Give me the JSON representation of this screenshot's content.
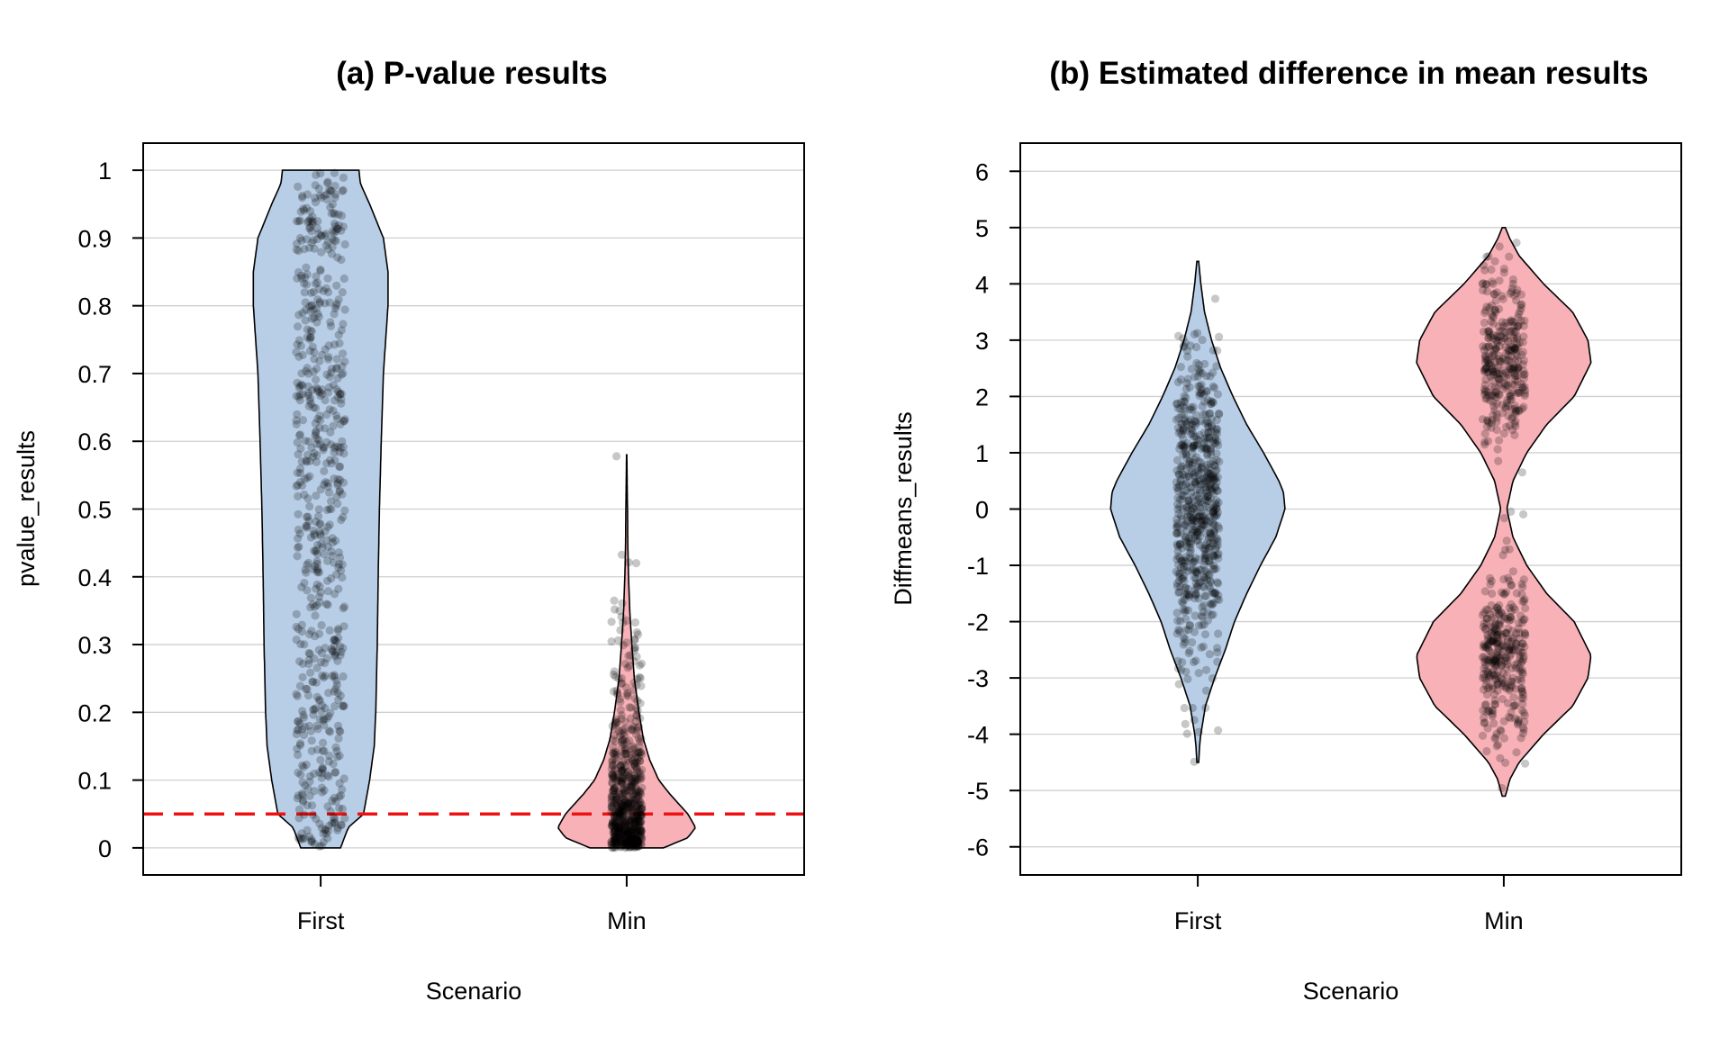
{
  "chart_data": [
    {
      "type": "violin",
      "title": "(a) P-value results",
      "xlabel": "Scenario",
      "ylabel": "pvalue_results",
      "categories": [
        "First",
        "Min"
      ],
      "yticks": [
        "0",
        "0.1",
        "0.2",
        "0.3",
        "0.4",
        "0.5",
        "0.6",
        "0.7",
        "0.8",
        "0.9",
        "1"
      ],
      "ylim": [
        -0.04,
        1.04
      ],
      "grid": true,
      "reference_line": {
        "y": 0.05,
        "style": "dashed",
        "color": "#ee1111"
      },
      "series": [
        {
          "category": "First",
          "fill": "#b8cde6",
          "range": [
            0,
            1
          ],
          "profile": [
            [
              0,
              0.065
            ],
            [
              0.03,
              0.09
            ],
            [
              0.05,
              0.14
            ],
            [
              0.1,
              0.16
            ],
            [
              0.15,
              0.175
            ],
            [
              0.2,
              0.18
            ],
            [
              0.3,
              0.185
            ],
            [
              0.4,
              0.188
            ],
            [
              0.5,
              0.192
            ],
            [
              0.6,
              0.198
            ],
            [
              0.7,
              0.205
            ],
            [
              0.8,
              0.22
            ],
            [
              0.85,
              0.22
            ],
            [
              0.9,
              0.205
            ],
            [
              0.95,
              0.16
            ],
            [
              0.98,
              0.13
            ],
            [
              1,
              0.125
            ]
          ],
          "points": {
            "n": 650,
            "distribution": "uniform",
            "min": 0,
            "max": 1,
            "jitter": 0.08
          }
        },
        {
          "category": "Min",
          "fill": "#f7b1b7",
          "range": [
            0,
            0.58
          ],
          "profile": [
            [
              0,
              0.12
            ],
            [
              0.015,
              0.2
            ],
            [
              0.03,
              0.225
            ],
            [
              0.05,
              0.2
            ],
            [
              0.08,
              0.14
            ],
            [
              0.1,
              0.105
            ],
            [
              0.13,
              0.075
            ],
            [
              0.16,
              0.055
            ],
            [
              0.2,
              0.04
            ],
            [
              0.25,
              0.025
            ],
            [
              0.3,
              0.017
            ],
            [
              0.35,
              0.01
            ],
            [
              0.4,
              0.006
            ],
            [
              0.45,
              0.0035
            ],
            [
              0.49,
              0.003
            ],
            [
              0.52,
              0.002
            ],
            [
              0.58,
              0.0005
            ]
          ],
          "points": {
            "n": 650,
            "distribution": "exponential",
            "mean": 0.08,
            "max": 0.58,
            "jitter": 0.05
          }
        }
      ]
    },
    {
      "type": "violin",
      "title": "(b) Estimated difference in mean results",
      "xlabel": "Scenario",
      "ylabel": "Diffmeans_results",
      "categories": [
        "First",
        "Min"
      ],
      "yticks": [
        "-6",
        "-5",
        "-4",
        "-3",
        "-2",
        "-1",
        "0",
        "1",
        "2",
        "3",
        "4",
        "5",
        "6"
      ],
      "ylim": [
        -6.5,
        6.5
      ],
      "grid": true,
      "series": [
        {
          "category": "First",
          "fill": "#b8cde6",
          "range": [
            -4.5,
            4.4
          ],
          "profile": [
            [
              -4.5,
              0.003
            ],
            [
              -4.2,
              0.006
            ],
            [
              -4,
              0.01
            ],
            [
              -3.5,
              0.025
            ],
            [
              -3,
              0.055
            ],
            [
              -2.5,
              0.09
            ],
            [
              -2,
              0.12
            ],
            [
              -1.5,
              0.16
            ],
            [
              -1,
              0.205
            ],
            [
              -0.5,
              0.255
            ],
            [
              0,
              0.285
            ],
            [
              0.3,
              0.28
            ],
            [
              0.5,
              0.265
            ],
            [
              1,
              0.215
            ],
            [
              1.5,
              0.16
            ],
            [
              2,
              0.115
            ],
            [
              2.5,
              0.075
            ],
            [
              3,
              0.045
            ],
            [
              3.5,
              0.022
            ],
            [
              4,
              0.01
            ],
            [
              4.4,
              0.003
            ]
          ],
          "points": {
            "n": 650,
            "distribution": "normal",
            "mean": 0,
            "sd": 1.35,
            "min": -4.5,
            "max": 4.4,
            "jitter": 0.07
          }
        },
        {
          "category": "Min",
          "fill": "#f7b1b7",
          "range": [
            -5.1,
            5.0
          ],
          "profile": [
            [
              -5.1,
              0.005
            ],
            [
              -4.8,
              0.02
            ],
            [
              -4.5,
              0.05
            ],
            [
              -4,
              0.13
            ],
            [
              -3.5,
              0.225
            ],
            [
              -3,
              0.275
            ],
            [
              -2.6,
              0.285
            ],
            [
              -2,
              0.23
            ],
            [
              -1.5,
              0.14
            ],
            [
              -1,
              0.075
            ],
            [
              -0.5,
              0.03
            ],
            [
              0,
              0.01
            ],
            [
              0.5,
              0.03
            ],
            [
              1,
              0.075
            ],
            [
              1.5,
              0.14
            ],
            [
              2,
              0.23
            ],
            [
              2.6,
              0.285
            ],
            [
              3,
              0.275
            ],
            [
              3.5,
              0.225
            ],
            [
              4,
              0.13
            ],
            [
              4.5,
              0.05
            ],
            [
              4.8,
              0.02
            ],
            [
              5,
              0.005
            ]
          ],
          "points": {
            "n": 650,
            "distribution": "bimodal",
            "modes": [
              -2.6,
              2.6
            ],
            "sd": 0.75,
            "min": -5.1,
            "max": 5.0,
            "jitter": 0.07
          }
        }
      ]
    }
  ]
}
